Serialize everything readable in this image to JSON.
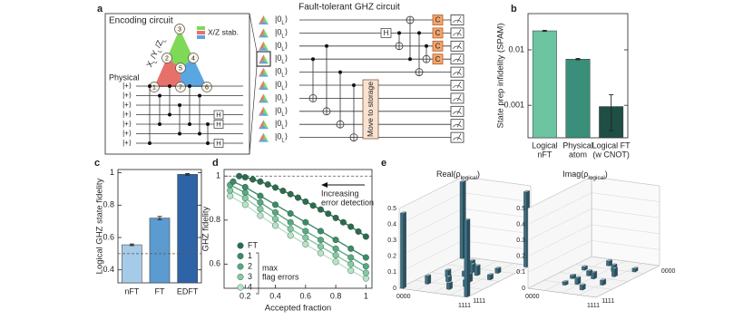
{
  "panel_a": {
    "label": "a",
    "encoding_title": "Encoding circuit",
    "logical_ops": [
      "X",
      "Y",
      "Z"
    ],
    "logical_sub": "L",
    "op_separator": "/",
    "stab_legend": "X/Z stab.",
    "qubits": [
      "1",
      "2",
      "3",
      "4",
      "5",
      "6",
      "7"
    ],
    "physical_title": "Physical",
    "physical_inputs": [
      "|+⟩",
      "|+⟩",
      "|+⟩",
      "|+⟩",
      "|+⟩",
      "|+⟩",
      "|+⟩"
    ],
    "physical_h": [
      "H",
      "H",
      "H"
    ],
    "ghz_title": "Fault-tolerant GHZ circuit",
    "logical_inputs": [
      "|0",
      "|0",
      "|0",
      "|0",
      "|0",
      "|0",
      "|0",
      "|0",
      "|0",
      "|0"
    ],
    "ket_close": "⟩",
    "ghz_h": "H",
    "c_gates": [
      "C",
      "C",
      "C",
      "C"
    ],
    "storage": "Move to storage"
  },
  "chart_data": [
    {
      "type": "bar",
      "panel": "b",
      "ylabel": "State prep infidelity (SPAM)",
      "log_scale": true,
      "categories": [
        [
          "Logical",
          "nFT"
        ],
        [
          "Physical",
          "atom"
        ],
        [
          "Logical FT",
          "(w CNOT)"
        ]
      ],
      "values": [
        0.022,
        0.0068,
        0.00095
      ],
      "errors": [
        0.0005,
        0.0002,
        0.0006
      ],
      "colors": [
        "#6cc4a1",
        "#3a8f7a",
        "#1f4e45"
      ],
      "ylim": [
        0.00026,
        0.045
      ],
      "yticks": [
        0.001,
        0.01
      ]
    },
    {
      "type": "bar",
      "panel": "c",
      "ylabel": "Logical GHZ state fidelity",
      "categories": [
        "nFT",
        "FT",
        "EDFT"
      ],
      "values": [
        0.555,
        0.72,
        0.99
      ],
      "errors": [
        0.005,
        0.01,
        0.005
      ],
      "colors": [
        "#a6cbe8",
        "#5b9bd0",
        "#2f63a8"
      ],
      "ylim": [
        0.32,
        1.02
      ],
      "yticks": [
        0.4,
        0.6,
        0.8,
        1
      ],
      "reference_line": 0.5
    },
    {
      "type": "line",
      "panel": "d",
      "xlabel": "Accepted fraction",
      "ylabel": "GHZ fidelity",
      "xlim": [
        0.06,
        1.04
      ],
      "ylim": [
        0.49,
        1.03
      ],
      "xticks": [
        0.2,
        0.4,
        0.6,
        0.8,
        1
      ],
      "yticks": [
        0.6,
        0.8,
        1
      ],
      "reference_line": 1,
      "annotation": [
        "Increasing",
        "error detection"
      ],
      "legend_title": [
        "max",
        "flag errors"
      ],
      "series": [
        {
          "name": "FT",
          "color": "#2d6b4f",
          "x": [
            0.16,
            0.2,
            0.25,
            0.3,
            0.35,
            0.4,
            0.45,
            0.5,
            0.55,
            0.6,
            0.65,
            0.7,
            0.75,
            0.8,
            0.85,
            0.9,
            0.95,
            1
          ],
          "values": [
            1,
            0.995,
            0.985,
            0.975,
            0.962,
            0.948,
            0.933,
            0.918,
            0.902,
            0.884,
            0.866,
            0.848,
            0.829,
            0.81,
            0.79,
            0.77,
            0.748,
            0.725
          ]
        },
        {
          "name": "1",
          "color": "#3d8a66",
          "x": [
            0.12,
            0.2,
            0.3,
            0.4,
            0.5,
            0.6,
            0.7,
            0.8,
            0.9,
            1
          ],
          "values": [
            0.975,
            0.95,
            0.91,
            0.87,
            0.83,
            0.79,
            0.75,
            0.71,
            0.67,
            0.63
          ]
        },
        {
          "name": "2",
          "color": "#5aa882",
          "x": [
            0.1,
            0.2,
            0.3,
            0.4,
            0.5,
            0.6,
            0.7,
            0.8,
            0.9,
            1
          ],
          "values": [
            0.96,
            0.925,
            0.88,
            0.835,
            0.79,
            0.75,
            0.71,
            0.67,
            0.63,
            0.59
          ]
        },
        {
          "name": "3",
          "color": "#86c9a3",
          "x": [
            0.1,
            0.2,
            0.3,
            0.4,
            0.5,
            0.6,
            0.7,
            0.8,
            0.9,
            1
          ],
          "values": [
            0.935,
            0.9,
            0.85,
            0.805,
            0.76,
            0.72,
            0.68,
            0.64,
            0.6,
            0.56
          ]
        },
        {
          "name": "4",
          "color": "#b9e3c8",
          "x": [
            0.1,
            0.2,
            0.3,
            0.4,
            0.5,
            0.6,
            0.7,
            0.8,
            0.9,
            1
          ],
          "values": [
            0.91,
            0.87,
            0.82,
            0.775,
            0.73,
            0.69,
            0.65,
            0.61,
            0.57,
            0.535
          ]
        }
      ]
    },
    {
      "type": "bar3d",
      "panel": "e",
      "title": "Real(ρ",
      "title_sub": "logical",
      "title_end": ")",
      "color": "#3f6e80",
      "zlim": [
        0,
        0.5
      ],
      "zticks": [
        0,
        0.1,
        0.2,
        0.3,
        0.4,
        0.5
      ],
      "col_labels": [
        "0000",
        "1111"
      ],
      "row_labels": [
        "0000",
        "1111"
      ],
      "rows": [
        0,
        0,
        3,
        5,
        7,
        6,
        8,
        9,
        10,
        11,
        4,
        12,
        13,
        7,
        15,
        15
      ],
      "cols": [
        0,
        15,
        5,
        7,
        7,
        9,
        4,
        10,
        6,
        11,
        12,
        3,
        9,
        13,
        0,
        15
      ],
      "values": [
        0.48,
        0.47,
        0.04,
        0.05,
        0.03,
        0.06,
        0.04,
        0.05,
        0.03,
        0.04,
        0.03,
        0.05,
        0.04,
        0.03,
        0.47,
        0.48
      ]
    },
    {
      "type": "bar3d",
      "title": "Imag(ρ",
      "title_sub": "logical",
      "title_end": ")",
      "color": "#3f6e80",
      "zlim": [
        0,
        0.5
      ],
      "zticks": [
        0,
        0.1,
        0.2,
        0.3,
        0.4,
        0.5
      ],
      "col_labels": [
        "0000",
        "1111"
      ],
      "row_labels": [
        "0000",
        "1111"
      ],
      "rows": [
        2,
        4,
        5,
        6,
        7,
        8,
        9,
        10,
        11,
        12,
        13,
        3
      ],
      "cols": [
        6,
        9,
        3,
        11,
        6,
        8,
        4,
        12,
        7,
        5,
        10,
        13
      ],
      "values": [
        0.03,
        0.04,
        0.02,
        0.05,
        0.03,
        0.04,
        0.02,
        0.03,
        0.04,
        0.02,
        0.03,
        0.02
      ]
    }
  ]
}
